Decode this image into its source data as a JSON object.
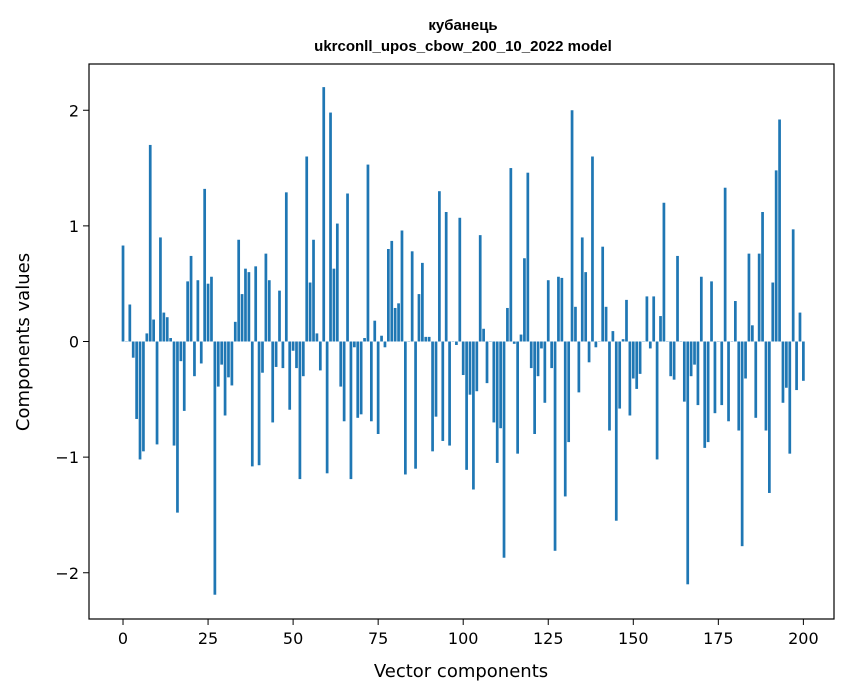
{
  "chart_data": {
    "type": "bar",
    "title_line1": "кубанець",
    "title_line2": "ukrconll_upos_cbow_200_10_2022 model",
    "xlabel": "Vector components",
    "ylabel": "Components values",
    "xlim": [
      -10,
      209
    ],
    "ylim": [
      -2.4,
      2.4
    ],
    "xticks": [
      0,
      25,
      50,
      75,
      100,
      125,
      150,
      175,
      200
    ],
    "yticks": [
      -2,
      -1,
      0,
      1,
      2
    ],
    "ytick_labels": [
      "−2",
      "−1",
      "0",
      "1",
      "2"
    ],
    "color": "#1f77b4",
    "values": [
      0.83,
      0.0,
      0.32,
      -0.14,
      -0.67,
      -1.02,
      -0.95,
      0.07,
      1.7,
      0.19,
      -0.89,
      0.9,
      0.25,
      0.21,
      0.03,
      -0.9,
      -1.48,
      -0.17,
      -0.6,
      0.52,
      0.74,
      -0.3,
      0.53,
      -0.19,
      1.32,
      0.5,
      0.56,
      -2.19,
      -0.39,
      -0.2,
      -0.64,
      -0.31,
      -0.38,
      0.17,
      0.88,
      0.41,
      0.63,
      0.6,
      -1.08,
      0.65,
      -1.07,
      -0.27,
      0.76,
      0.53,
      -0.7,
      -0.22,
      0.44,
      -0.23,
      1.29,
      -0.59,
      -0.08,
      -0.23,
      -1.19,
      -0.3,
      1.6,
      0.51,
      0.88,
      0.07,
      -0.25,
      2.2,
      -1.14,
      1.98,
      0.63,
      1.02,
      -0.39,
      -0.69,
      1.28,
      -1.19,
      -0.05,
      -0.66,
      -0.63,
      0.03,
      1.53,
      -0.69,
      0.18,
      -0.8,
      0.05,
      -0.05,
      0.8,
      0.87,
      0.29,
      0.33,
      0.96,
      -1.15,
      0.0,
      0.78,
      -1.1,
      0.41,
      0.68,
      0.04,
      0.04,
      -0.95,
      -0.65,
      1.3,
      -0.86,
      1.12,
      -0.9,
      0.0,
      -0.03,
      1.07,
      -0.29,
      -1.11,
      -0.46,
      -1.28,
      -0.43,
      0.92,
      0.11,
      -0.36,
      0.0,
      -0.7,
      -1.05,
      -0.75,
      -1.87,
      0.29,
      1.5,
      -0.02,
      -0.97,
      0.06,
      0.72,
      1.46,
      -0.23,
      -0.8,
      -0.3,
      -0.06,
      -0.53,
      0.53,
      -0.23,
      -1.81,
      0.56,
      0.55,
      -1.34,
      -0.87,
      2.0,
      0.3,
      -0.44,
      0.9,
      0.6,
      -0.18,
      1.6,
      -0.05,
      0.0,
      0.82,
      0.3,
      -0.77,
      0.09,
      -1.55,
      -0.58,
      0.02,
      0.36,
      -0.64,
      -0.32,
      -0.41,
      -0.28,
      0.0,
      0.39,
      -0.06,
      0.39,
      -1.02,
      0.22,
      1.2,
      0.0,
      -0.3,
      -0.33,
      0.74,
      0.0,
      -0.52,
      -2.1,
      -0.3,
      -0.2,
      -0.55,
      0.56,
      -0.92,
      -0.87,
      0.52,
      -0.62,
      0.0,
      -0.55,
      1.33,
      -0.69,
      0.0,
      0.35,
      -0.77,
      -1.77,
      -0.32,
      0.76,
      0.14,
      -0.66,
      0.76,
      1.12,
      -0.77,
      -1.31,
      0.51,
      1.48,
      1.92,
      -0.53,
      -0.4,
      -0.97,
      0.97,
      -0.42,
      0.25,
      -0.34
    ]
  }
}
